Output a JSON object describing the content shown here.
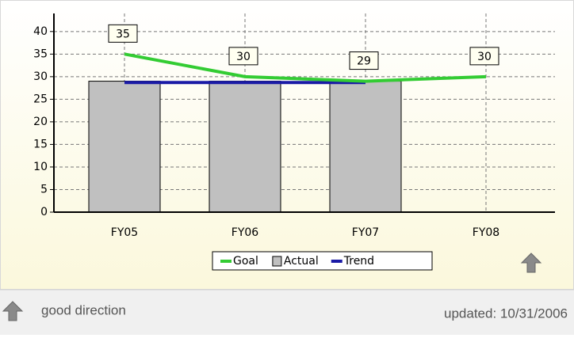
{
  "chart_data": {
    "type": "combo",
    "categories": [
      "FY05",
      "FY06",
      "FY07",
      "FY08"
    ],
    "series": [
      {
        "name": "Goal",
        "type": "line",
        "color": "#33cc33",
        "values": [
          35,
          30,
          29,
          30
        ]
      },
      {
        "name": "Actual",
        "type": "bar",
        "color": "#c0c0c0",
        "values": [
          29,
          29,
          29,
          null
        ]
      },
      {
        "name": "Trend",
        "type": "line",
        "color": "#1a1aa6",
        "values": [
          28.7,
          28.7,
          28.7,
          null
        ]
      }
    ],
    "ylim": [
      0,
      44
    ],
    "yticks": [
      0,
      5,
      10,
      15,
      20,
      25,
      30,
      35,
      40
    ],
    "grid": true,
    "legend": "bottom"
  },
  "footer": {
    "direction": "good direction",
    "updated": "updated: 10/31/2006"
  }
}
